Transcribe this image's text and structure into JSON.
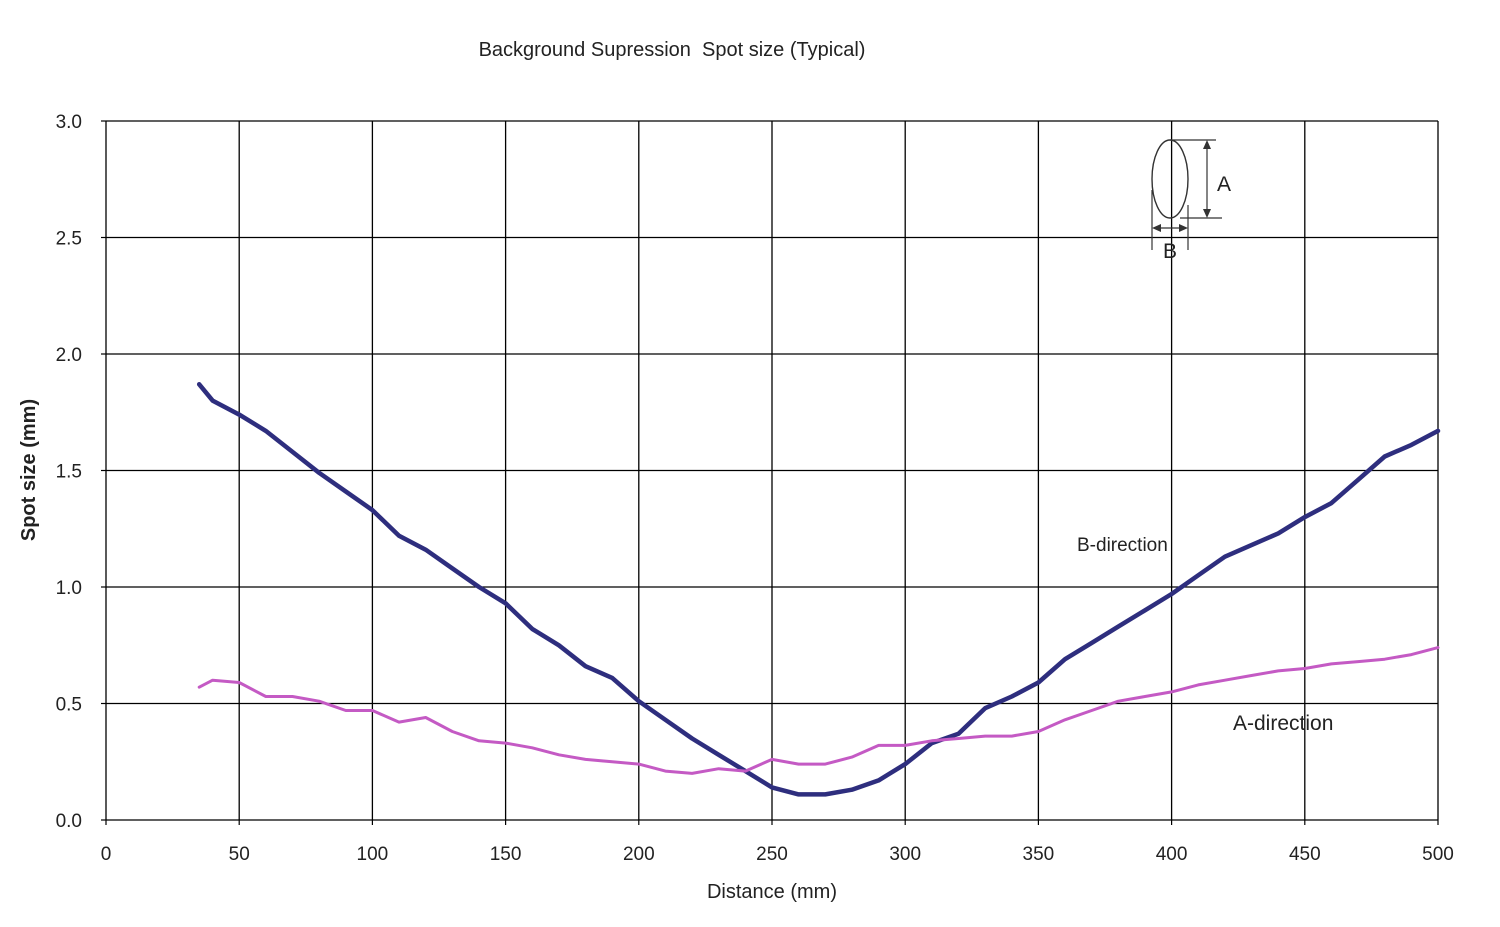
{
  "chart_data": {
    "type": "line",
    "title": "Background Supression  Spot size (Typical)",
    "xlabel": "Distance (mm)",
    "ylabel": "Spot size (mm)",
    "xlim": [
      0,
      500
    ],
    "ylim": [
      0,
      3.0
    ],
    "x_ticks": [
      "0",
      "50",
      "100",
      "150",
      "200",
      "250",
      "300",
      "350",
      "400",
      "450",
      "500"
    ],
    "y_ticks": [
      "0.0",
      "0.5",
      "1.0",
      "1.5",
      "2.0",
      "2.5",
      "3.0"
    ],
    "grid": true,
    "series": [
      {
        "name": "B-direction",
        "color": "#2e2e7e",
        "x": [
          35,
          40,
          50,
          60,
          70,
          80,
          90,
          100,
          110,
          120,
          130,
          140,
          150,
          160,
          170,
          180,
          190,
          200,
          210,
          220,
          230,
          240,
          250,
          260,
          270,
          280,
          290,
          300,
          310,
          320,
          330,
          340,
          350,
          360,
          370,
          380,
          390,
          400,
          410,
          420,
          430,
          440,
          450,
          460,
          470,
          480,
          490,
          500
        ],
        "y": [
          1.87,
          1.8,
          1.74,
          1.67,
          1.58,
          1.49,
          1.41,
          1.33,
          1.22,
          1.16,
          1.08,
          1.0,
          0.93,
          0.82,
          0.75,
          0.66,
          0.61,
          0.51,
          0.43,
          0.35,
          0.28,
          0.21,
          0.14,
          0.11,
          0.11,
          0.13,
          0.17,
          0.24,
          0.33,
          0.37,
          0.48,
          0.53,
          0.59,
          0.69,
          0.76,
          0.83,
          0.9,
          0.97,
          1.05,
          1.13,
          1.18,
          1.23,
          1.3,
          1.36,
          1.46,
          1.56,
          1.61,
          1.67
        ]
      },
      {
        "name": "A-direction",
        "color": "#c45ac4",
        "x": [
          35,
          40,
          50,
          60,
          70,
          80,
          90,
          100,
          110,
          120,
          130,
          140,
          150,
          160,
          170,
          180,
          190,
          200,
          210,
          220,
          230,
          240,
          250,
          260,
          270,
          280,
          290,
          300,
          310,
          320,
          330,
          340,
          350,
          360,
          370,
          380,
          390,
          400,
          410,
          420,
          430,
          440,
          450,
          460,
          470,
          480,
          490,
          500
        ],
        "y": [
          0.57,
          0.6,
          0.59,
          0.53,
          0.53,
          0.51,
          0.47,
          0.47,
          0.42,
          0.44,
          0.38,
          0.34,
          0.33,
          0.31,
          0.28,
          0.26,
          0.25,
          0.24,
          0.21,
          0.2,
          0.22,
          0.21,
          0.26,
          0.24,
          0.24,
          0.27,
          0.32,
          0.32,
          0.34,
          0.35,
          0.36,
          0.36,
          0.38,
          0.43,
          0.47,
          0.51,
          0.53,
          0.55,
          0.58,
          0.6,
          0.62,
          0.64,
          0.65,
          0.67,
          0.68,
          0.69,
          0.71,
          0.74
        ]
      }
    ],
    "annotations": [
      "B-direction",
      "A-direction"
    ],
    "inset": {
      "label_a": "A",
      "label_b": "B"
    }
  }
}
